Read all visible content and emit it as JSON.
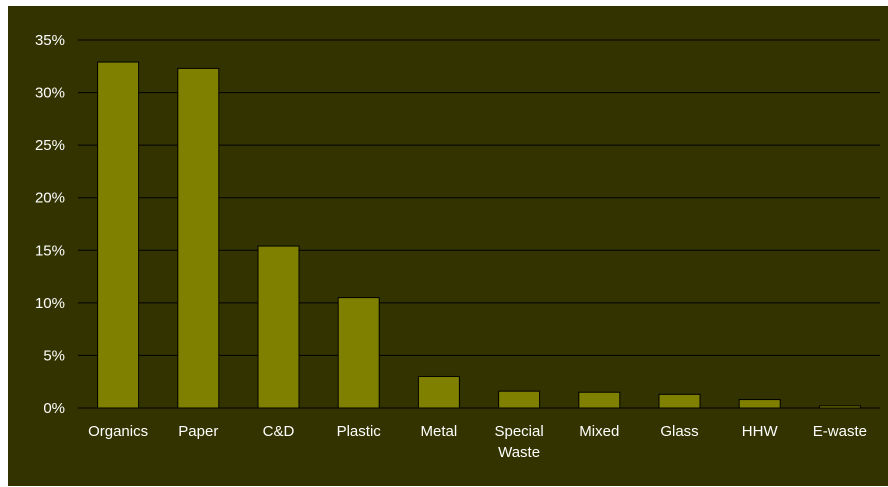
{
  "chart_data": {
    "type": "bar",
    "title": "",
    "xlabel": "",
    "ylabel": "",
    "categories": [
      [
        "Organics"
      ],
      [
        "Paper"
      ],
      [
        "C&D"
      ],
      [
        "Plastic"
      ],
      [
        "Metal"
      ],
      [
        "Special",
        "Waste"
      ],
      [
        "Mixed"
      ],
      [
        "Glass"
      ],
      [
        "HHW"
      ],
      [
        "E-waste"
      ]
    ],
    "values": [
      0.329,
      0.323,
      0.154,
      0.105,
      0.03,
      0.016,
      0.015,
      0.013,
      0.008,
      0.002
    ],
    "ylim": [
      0,
      0.35
    ],
    "yticks": [
      {
        "value": 0,
        "label": "0%"
      },
      {
        "value": 0.05,
        "label": "5%"
      },
      {
        "value": 0.1,
        "label": "10%"
      },
      {
        "value": 0.15,
        "label": "15%"
      },
      {
        "value": 0.2,
        "label": "20%"
      },
      {
        "value": 0.25,
        "label": "25%"
      },
      {
        "value": 0.3,
        "label": "30%"
      },
      {
        "value": 0.35,
        "label": "35%"
      }
    ],
    "grid": true,
    "legend": "none",
    "colors": {
      "background": "#333300",
      "bar": "#808000",
      "text": "#ffffff"
    }
  }
}
